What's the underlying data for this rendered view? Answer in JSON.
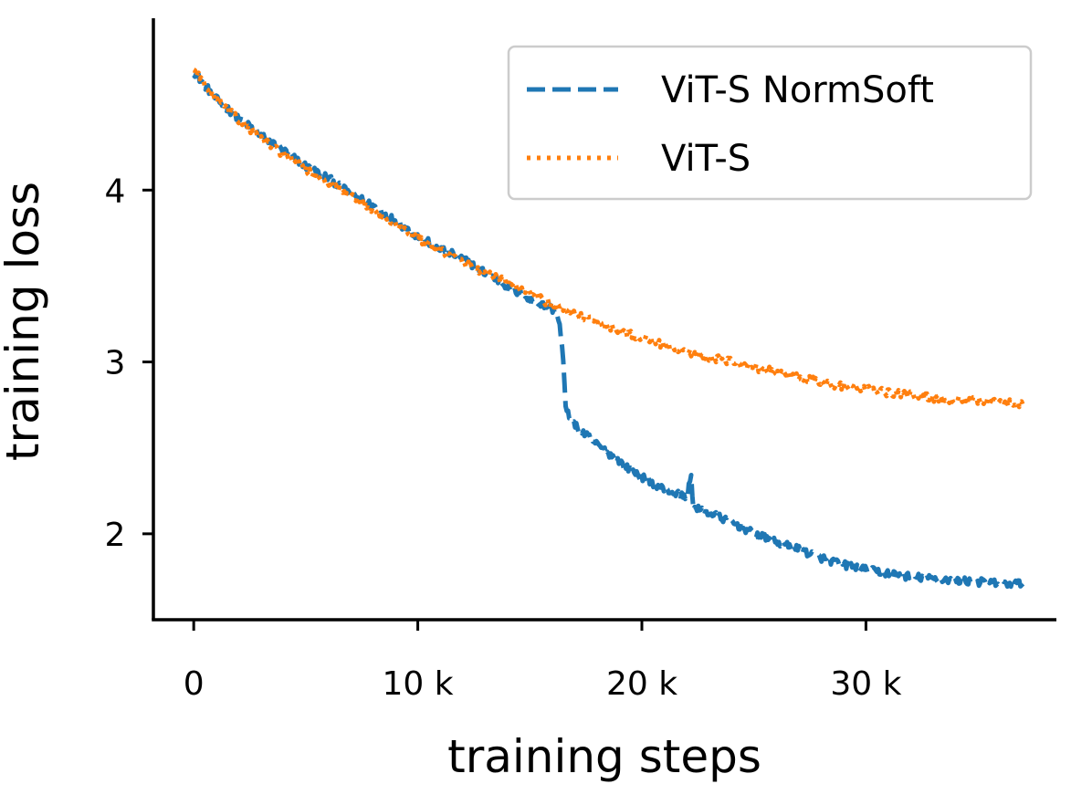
{
  "chart_data": {
    "type": "line",
    "title": "",
    "xlabel": "training steps",
    "ylabel": "training loss",
    "xlim": [
      -1800,
      38500
    ],
    "ylim": [
      1.5,
      5.0
    ],
    "xticks": [
      {
        "value": 0,
        "label": "0"
      },
      {
        "value": 10000,
        "label": "10 k"
      },
      {
        "value": 20000,
        "label": "20 k"
      },
      {
        "value": 30000,
        "label": "30 k"
      }
    ],
    "yticks": [
      {
        "value": 2,
        "label": "2"
      },
      {
        "value": 3,
        "label": "3"
      },
      {
        "value": 4,
        "label": "4"
      }
    ],
    "grid": false,
    "legend_position": "top-right",
    "series": [
      {
        "name": "ViT-S NormSoft",
        "color": "#1f77b4",
        "style": "dashed",
        "x": [
          0,
          1000,
          2000,
          3000,
          4000,
          5000,
          6000,
          7000,
          8000,
          9000,
          10000,
          11000,
          12000,
          13000,
          14000,
          15000,
          16000,
          16300,
          16500,
          16600,
          17000,
          18000,
          19000,
          20000,
          21000,
          22000,
          22200,
          22300,
          23000,
          24000,
          25000,
          26000,
          27000,
          28000,
          29000,
          30000,
          31000,
          32000,
          33000,
          34000,
          35000,
          36000,
          37000
        ],
        "y": [
          4.69,
          4.53,
          4.42,
          4.32,
          4.23,
          4.14,
          4.07,
          3.98,
          3.91,
          3.82,
          3.73,
          3.66,
          3.6,
          3.52,
          3.44,
          3.36,
          3.31,
          3.25,
          3.0,
          2.72,
          2.63,
          2.52,
          2.42,
          2.33,
          2.26,
          2.21,
          2.34,
          2.15,
          2.12,
          2.07,
          2.0,
          1.95,
          1.91,
          1.86,
          1.82,
          1.79,
          1.77,
          1.75,
          1.74,
          1.73,
          1.72,
          1.71,
          1.71
        ]
      },
      {
        "name": "ViT-S",
        "color": "#ff7f0e",
        "style": "dotted",
        "x": [
          0,
          1000,
          2000,
          3000,
          4000,
          5000,
          6000,
          7000,
          8000,
          9000,
          10000,
          11000,
          12000,
          13000,
          14000,
          15000,
          16000,
          17000,
          18000,
          19000,
          20000,
          21000,
          22000,
          23000,
          24000,
          25000,
          26000,
          27000,
          28000,
          29000,
          30000,
          31000,
          32000,
          33000,
          34000,
          35000,
          36000,
          37000
        ],
        "y": [
          4.7,
          4.53,
          4.41,
          4.3,
          4.21,
          4.12,
          4.04,
          3.96,
          3.89,
          3.8,
          3.72,
          3.65,
          3.58,
          3.52,
          3.46,
          3.4,
          3.33,
          3.28,
          3.23,
          3.18,
          3.14,
          3.1,
          3.06,
          3.03,
          3.0,
          2.97,
          2.94,
          2.91,
          2.88,
          2.86,
          2.84,
          2.82,
          2.81,
          2.79,
          2.78,
          2.77,
          2.76,
          2.76
        ]
      }
    ]
  }
}
